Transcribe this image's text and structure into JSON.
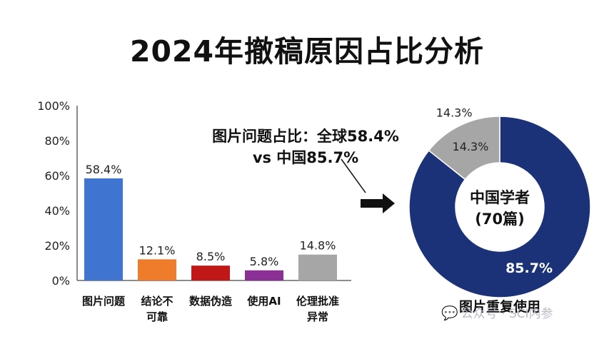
{
  "title": "2024年撤稿原因占比分析",
  "annotation": {
    "line1": "图片问题占比：全球58.4%",
    "line2": "vs 中国85.7%"
  },
  "chart_data": [
    {
      "type": "bar",
      "title": "",
      "categories": [
        "图片问题",
        "结论不可靠",
        "数据伪造",
        "使用AI",
        "伦理批准异常"
      ],
      "category_lines": [
        [
          "图片问题"
        ],
        [
          "结论不",
          "可靠"
        ],
        [
          "数据伪造"
        ],
        [
          "使用AI"
        ],
        [
          "伦理批准",
          "异常"
        ]
      ],
      "values": [
        58.4,
        12.1,
        8.5,
        5.8,
        14.8
      ],
      "value_labels": [
        "58.4%",
        "12.1%",
        "8.5%",
        "5.8%",
        "14.8%"
      ],
      "colors": [
        "#3f74d0",
        "#ef7c2a",
        "#c01717",
        "#8b2f95",
        "#a6a6a6"
      ],
      "ylim": [
        0,
        100
      ],
      "yticks": [
        "0%",
        "20%",
        "40%",
        "60%",
        "80%",
        "100%"
      ],
      "xlabel": "",
      "ylabel": ""
    },
    {
      "type": "pie",
      "subtype": "donut",
      "title": "图片重复使用",
      "center_label": [
        "中国学者",
        "(70篇)"
      ],
      "values": [
        85.7,
        14.3
      ],
      "labels": [
        "85.7%",
        "14.3%"
      ],
      "colors": [
        "#1c3278",
        "#a6a6a6"
      ],
      "outer_label": "14.3%"
    }
  ],
  "watermark": {
    "icon": "wechat-icon",
    "text": "公众号 · SCI内参"
  }
}
